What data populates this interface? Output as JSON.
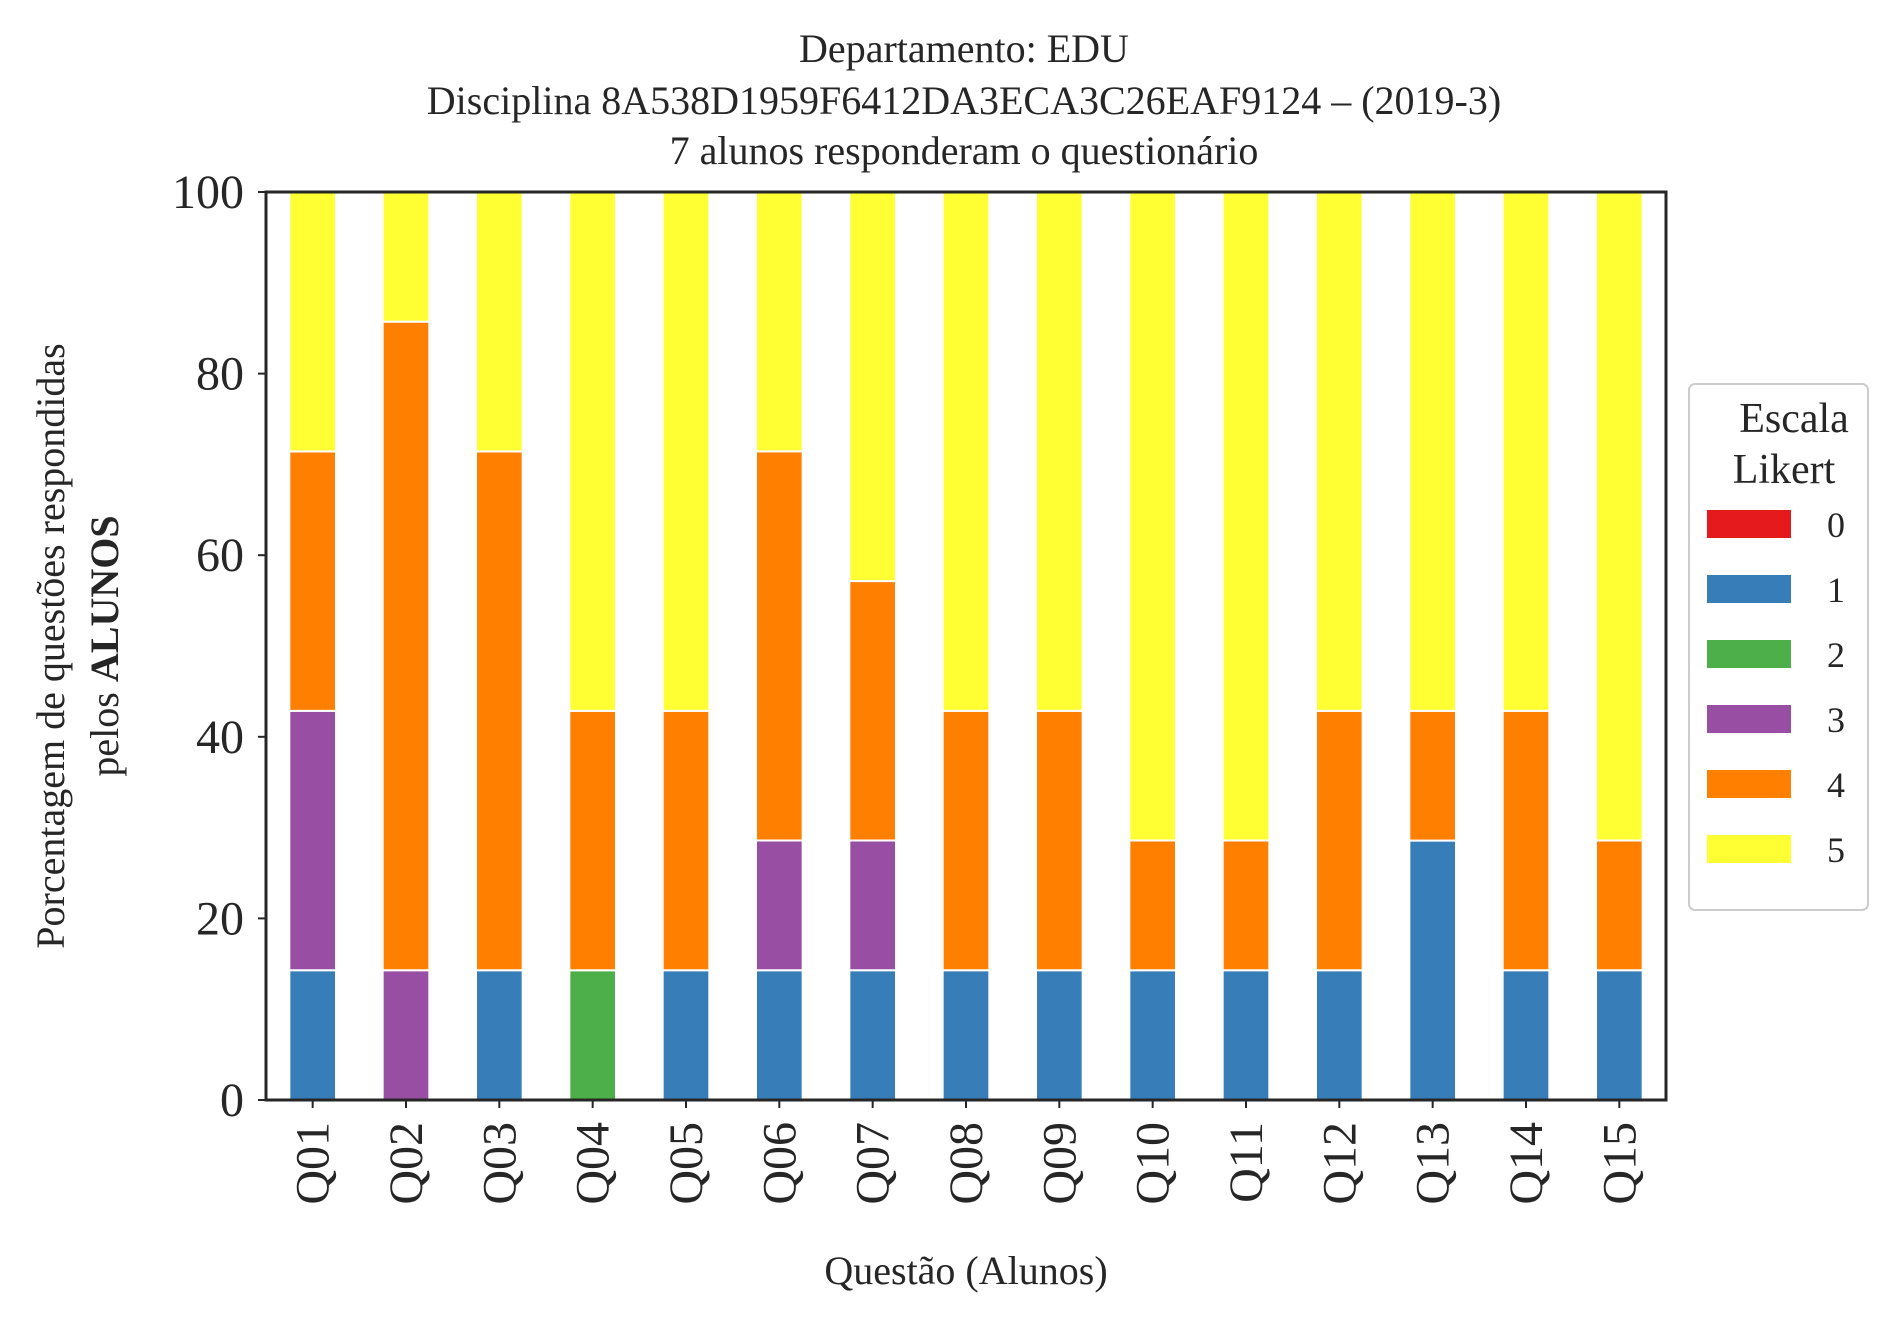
{
  "chart_data": {
    "type": "bar",
    "stacked": true,
    "title_lines": [
      "Departamento: EDU",
      "Disciplina 8A538D1959F6412DA3ECA3C26EAF9124 – (2019-3)",
      "7 alunos responderam o questionário"
    ],
    "xlabel": "Questão (Alunos)",
    "ylabel_line1": "Porcentagem de questões respondidas",
    "ylabel_line2_prefix": "pelos ",
    "ylabel_line2_bold": "ALUNOS",
    "ylim": [
      0,
      100
    ],
    "yticks": [
      "0",
      "20",
      "40",
      "60",
      "80",
      "100"
    ],
    "categories": [
      "Q01",
      "Q02",
      "Q03",
      "Q04",
      "Q05",
      "Q06",
      "Q07",
      "Q08",
      "Q09",
      "Q10",
      "Q11",
      "Q12",
      "Q13",
      "Q14",
      "Q15"
    ],
    "legend": {
      "title_line1": "Escala",
      "title_line2": "Likert",
      "placement": "center-right outside"
    },
    "grid": false,
    "series": [
      {
        "name": "0",
        "color": "#e41a1c",
        "values": [
          0,
          0,
          0,
          0,
          0,
          0,
          0,
          0,
          0,
          0,
          0,
          0,
          0,
          0,
          0
        ]
      },
      {
        "name": "1",
        "color": "#377eb8",
        "values": [
          14.29,
          0,
          14.29,
          0,
          14.29,
          14.29,
          14.29,
          14.29,
          14.29,
          14.29,
          14.29,
          14.29,
          28.57,
          14.29,
          14.29
        ]
      },
      {
        "name": "2",
        "color": "#4daf4a",
        "values": [
          0,
          0,
          0,
          14.29,
          0,
          0,
          0,
          0,
          0,
          0,
          0,
          0,
          0,
          0,
          0
        ]
      },
      {
        "name": "3",
        "color": "#984ea3",
        "values": [
          28.57,
          14.29,
          0,
          0,
          0,
          14.29,
          14.29,
          0,
          0,
          0,
          0,
          0,
          0,
          0,
          0
        ]
      },
      {
        "name": "4",
        "color": "#ff7f00",
        "values": [
          28.57,
          71.43,
          57.14,
          28.57,
          28.57,
          42.86,
          28.57,
          28.57,
          28.57,
          14.29,
          14.29,
          28.57,
          14.29,
          28.57,
          14.29
        ]
      },
      {
        "name": "5",
        "color": "#ffff33",
        "values": [
          28.57,
          14.29,
          28.57,
          57.14,
          57.14,
          28.57,
          42.86,
          57.14,
          57.14,
          71.43,
          71.43,
          57.14,
          57.14,
          57.14,
          71.43
        ]
      }
    ]
  }
}
